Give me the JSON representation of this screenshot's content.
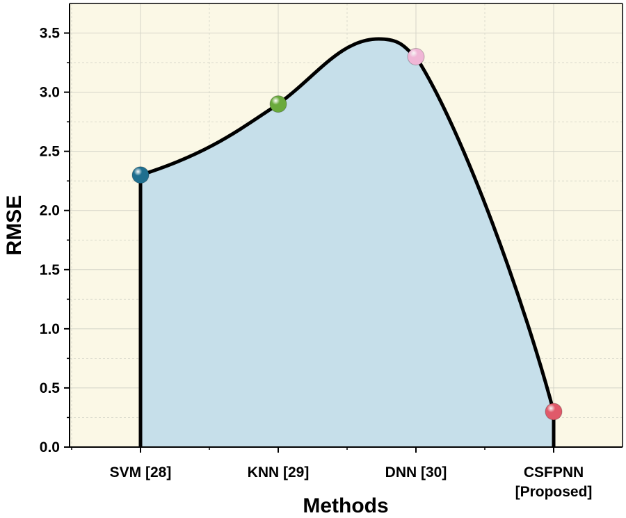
{
  "chart_data": {
    "type": "area",
    "title": "",
    "xlabel": "Methods",
    "ylabel": "RMSE",
    "ylim": [
      0,
      3.75
    ],
    "yticks": [
      "0.0",
      "0.5",
      "1.0",
      "1.5",
      "2.0",
      "2.5",
      "3.0",
      "3.5"
    ],
    "categories": [
      {
        "lines": [
          "SVM [28]"
        ]
      },
      {
        "lines": [
          "KNN [29]"
        ]
      },
      {
        "lines": [
          "DNN [30]"
        ]
      },
      {
        "lines": [
          "CSFPNN",
          "[Proposed]"
        ]
      }
    ],
    "values": [
      2.3,
      2.9,
      3.3,
      0.3
    ],
    "curve_peak": {
      "x_index": 1.73,
      "value": 3.45
    },
    "grid": true,
    "colors": {
      "plot_background": "#fbf8e6",
      "area_fill": "#c6dfea",
      "curve": "#000000",
      "grid": "#d4d4c8",
      "markers": [
        "#1f6f8f",
        "#6aaa3c",
        "#f0b6d6",
        "#e05a6a"
      ]
    }
  }
}
